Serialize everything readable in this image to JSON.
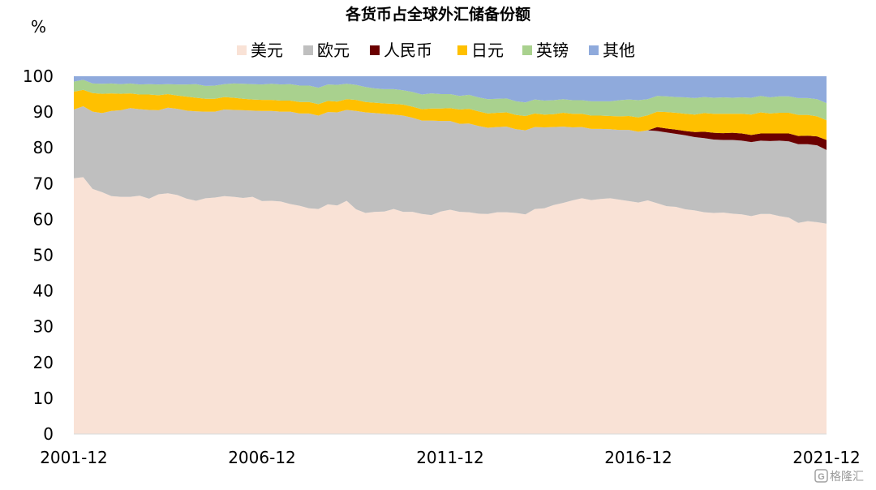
{
  "chart_data": {
    "type": "area",
    "title": "各货币占全球外汇储备份额",
    "ylabel": "%",
    "xlabel": "",
    "ylim": [
      0,
      100
    ],
    "y_ticks": [
      0,
      10,
      20,
      30,
      40,
      50,
      60,
      70,
      80,
      90,
      100
    ],
    "x_ticks": [
      "2001-12",
      "2006-12",
      "2011-12",
      "2016-12",
      "2021-12"
    ],
    "x_tick_positions": [
      0,
      5,
      10,
      15,
      20
    ],
    "stacked": true,
    "legend_position": "top-center",
    "grid": false,
    "x": [
      0,
      0.25,
      0.5,
      0.75,
      1,
      1.25,
      1.5,
      1.75,
      2,
      2.25,
      2.5,
      2.75,
      3,
      3.25,
      3.5,
      3.75,
      4,
      4.25,
      4.5,
      4.75,
      5,
      5.25,
      5.5,
      5.75,
      6,
      6.25,
      6.5,
      6.75,
      7,
      7.25,
      7.5,
      7.75,
      8,
      8.25,
      8.5,
      8.75,
      9,
      9.25,
      9.5,
      9.75,
      10,
      10.25,
      10.5,
      10.75,
      11,
      11.25,
      11.5,
      11.75,
      12,
      12.25,
      12.5,
      12.75,
      13,
      13.25,
      13.5,
      13.75,
      14,
      14.25,
      14.5,
      14.75,
      15,
      15.25,
      15.5,
      15.75,
      16,
      16.25,
      16.5,
      16.75,
      17,
      17.25,
      17.5,
      17.75,
      18,
      18.25,
      18.5,
      18.75,
      19,
      19.25,
      19.5,
      19.75,
      20
    ],
    "series": [
      {
        "name": "美元",
        "color": "#f9e2d6",
        "values": [
          71.5,
          71.8,
          68.5,
          67.6,
          66.5,
          66.3,
          66.3,
          66.6,
          65.8,
          67.0,
          67.3,
          66.8,
          65.8,
          65.2,
          65.9,
          66.1,
          66.5,
          66.3,
          66.0,
          66.3,
          65.1,
          65.2,
          65.0,
          64.3,
          63.8,
          63.1,
          62.9,
          64.2,
          63.9,
          65.2,
          62.8,
          61.8,
          62.1,
          62.2,
          62.9,
          62.1,
          62.1,
          61.5,
          61.2,
          62.2,
          62.7,
          62.1,
          62.0,
          61.6,
          61.5,
          62.0,
          62.0,
          61.8,
          61.4,
          62.9,
          63.1,
          64.0,
          64.6,
          65.3,
          65.9,
          65.4,
          65.7,
          65.9,
          65.5,
          65.1,
          64.7,
          65.3,
          64.5,
          63.7,
          63.5,
          62.8,
          62.5,
          62.0,
          61.8,
          61.9,
          61.6,
          61.4,
          60.9,
          61.5,
          61.5,
          60.9,
          60.5,
          59.0,
          59.5,
          59.2,
          58.8
        ]
      },
      {
        "name": "欧元",
        "color": "#bfbfbf",
        "values": [
          19.2,
          19.8,
          21.6,
          22.1,
          23.8,
          24.2,
          24.8,
          24.2,
          24.8,
          23.5,
          23.9,
          24.1,
          24.6,
          25.0,
          24.2,
          24.0,
          24.2,
          24.3,
          24.5,
          24.1,
          25.2,
          25.1,
          25.1,
          25.8,
          25.8,
          26.5,
          26.1,
          25.8,
          26.0,
          25.4,
          27.5,
          28.1,
          27.6,
          27.3,
          26.4,
          26.9,
          26.3,
          26.1,
          26.4,
          25.3,
          24.8,
          24.6,
          24.8,
          24.5,
          24.1,
          23.8,
          23.9,
          23.4,
          23.5,
          22.9,
          22.6,
          21.8,
          21.3,
          20.4,
          19.9,
          19.9,
          19.6,
          19.3,
          19.5,
          19.9,
          19.8,
          19.6,
          20.2,
          20.6,
          20.4,
          20.7,
          20.5,
          20.7,
          20.5,
          20.3,
          20.6,
          20.6,
          20.7,
          20.5,
          20.4,
          21.1,
          21.3,
          22.0,
          21.5,
          21.5,
          20.6
        ]
      },
      {
        "name": "人民币",
        "color": "#6b0000",
        "values": [
          0,
          0,
          0,
          0,
          0,
          0,
          0,
          0,
          0,
          0,
          0,
          0,
          0,
          0,
          0,
          0,
          0,
          0,
          0,
          0,
          0,
          0,
          0,
          0,
          0,
          0,
          0,
          0,
          0,
          0,
          0,
          0,
          0,
          0,
          0,
          0,
          0,
          0,
          0,
          0,
          0,
          0,
          0,
          0,
          0,
          0,
          0,
          0,
          0,
          0,
          0,
          0,
          0,
          0,
          0,
          0,
          0,
          0,
          0,
          0,
          0,
          0,
          1.1,
          1.1,
          1.2,
          1.2,
          1.4,
          1.8,
          1.9,
          1.9,
          2.0,
          2.0,
          2.0,
          2.0,
          2.1,
          2.0,
          2.2,
          2.3,
          2.4,
          2.5,
          2.8
        ]
      },
      {
        "name": "日元",
        "color": "#ffc000",
        "values": [
          5.0,
          4.6,
          5.2,
          5.4,
          4.9,
          4.6,
          4.1,
          4.1,
          4.3,
          4.2,
          3.8,
          3.7,
          3.9,
          3.8,
          3.6,
          3.6,
          3.5,
          3.4,
          3.2,
          3.1,
          3.1,
          3.1,
          3.1,
          3.1,
          3.2,
          3.2,
          3.2,
          3.1,
          3.0,
          3.0,
          3.1,
          2.9,
          2.9,
          2.9,
          3.0,
          3.1,
          3.1,
          3.2,
          3.4,
          3.5,
          3.6,
          4.0,
          4.1,
          4.1,
          4.0,
          4.0,
          4.0,
          4.0,
          4.0,
          3.8,
          3.6,
          3.6,
          3.9,
          3.8,
          3.7,
          3.7,
          3.7,
          3.7,
          3.8,
          3.9,
          4.0,
          4.2,
          4.3,
          4.6,
          4.7,
          4.8,
          4.9,
          5.2,
          5.3,
          5.4,
          5.3,
          5.5,
          5.7,
          5.9,
          5.6,
          5.8,
          5.8,
          5.9,
          5.8,
          5.6,
          5.5
        ]
      },
      {
        "name": "英镑",
        "color": "#a9d18e",
        "values": [
          2.8,
          2.8,
          2.7,
          2.8,
          2.8,
          2.7,
          2.8,
          2.8,
          2.9,
          3.0,
          2.8,
          3.1,
          3.4,
          3.8,
          3.6,
          3.7,
          3.6,
          4.0,
          4.2,
          4.3,
          4.3,
          4.5,
          4.5,
          4.6,
          4.6,
          4.6,
          4.6,
          4.6,
          4.7,
          4.3,
          4.2,
          4.2,
          4.0,
          4.0,
          4.1,
          4.0,
          4.1,
          4.1,
          4.2,
          4.0,
          3.9,
          3.8,
          3.9,
          3.9,
          4.0,
          3.9,
          3.9,
          3.8,
          3.8,
          3.9,
          3.9,
          3.9,
          3.8,
          3.8,
          3.8,
          4.0,
          4.0,
          4.1,
          4.5,
          4.6,
          4.8,
          4.5,
          4.4,
          4.4,
          4.4,
          4.6,
          4.6,
          4.5,
          4.5,
          4.6,
          4.5,
          4.6,
          4.7,
          4.6,
          4.5,
          4.6,
          4.6,
          4.7,
          4.7,
          4.8,
          4.8
        ]
      },
      {
        "name": "其他",
        "color": "#8faadc",
        "values": [
          1.5,
          1.0,
          2.0,
          2.1,
          2.0,
          2.2,
          2.0,
          2.3,
          2.2,
          2.3,
          2.2,
          2.3,
          2.3,
          2.2,
          2.7,
          2.6,
          2.2,
          2.0,
          2.1,
          2.2,
          2.3,
          2.1,
          2.3,
          2.2,
          2.6,
          2.6,
          3.2,
          2.3,
          2.4,
          2.1,
          2.4,
          3.0,
          3.4,
          3.6,
          3.6,
          3.9,
          4.4,
          5.1,
          4.8,
          5.0,
          5.0,
          5.5,
          5.2,
          5.9,
          6.4,
          6.3,
          6.2,
          7.0,
          7.3,
          6.5,
          6.8,
          6.7,
          6.4,
          6.7,
          6.7,
          7.0,
          7.0,
          7.0,
          6.7,
          6.5,
          6.7,
          6.4,
          5.5,
          5.6,
          5.8,
          5.9,
          6.1,
          5.8,
          6.0,
          5.9,
          6.0,
          5.9,
          6.0,
          5.5,
          5.9,
          5.6,
          5.6,
          6.1,
          6.1,
          6.4,
          7.5
        ]
      }
    ]
  },
  "watermark": {
    "text": "格隆汇",
    "icon": "g-logo-icon"
  }
}
